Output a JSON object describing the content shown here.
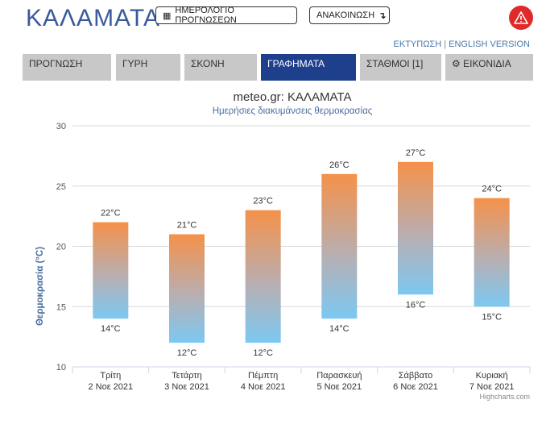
{
  "header": {
    "city": "ΚΑΛΑΜΑΤΑ",
    "calendar_button": "ΗΜΕΡΟΛΟΓΙΟ ΠΡΟΓΝΩΣΕΩΝ",
    "announcement_button": "ΑΝΑΚΟΙΝΩΣΗ",
    "print_link": "ΕΚΤΥΠΩΣΗ",
    "separator": "|",
    "english_link": "ENGLISH VERSION"
  },
  "tabs": [
    {
      "label": "ΠΡΟΓΝΩΣΗ",
      "active": false
    },
    {
      "label": "ΓΥΡΗ",
      "active": false
    },
    {
      "label": "ΣΚΟΝΗ",
      "active": false
    },
    {
      "label": "ΓΡΑΦΗΜΑΤΑ",
      "active": true
    },
    {
      "label": "ΣΤΑΘΜΟΙ [1]",
      "active": false
    },
    {
      "label": "ΕΙΚΟΝΙΔΙΑ",
      "active": false
    }
  ],
  "icons": {
    "calendar": "calendar-icon",
    "announcement": "arrow-turn-down-icon",
    "alert": "warning-icon",
    "icons_tab": "gear-icon"
  },
  "colors": {
    "accent": "#1e3f8c",
    "title": "#3a5a9a",
    "alert": "#e02a2a",
    "bar_top": "#f5914a",
    "bar_bottom": "#7cc8f2"
  },
  "chart_data": {
    "type": "bar",
    "title": "meteo.gr: ΚΑΛΑΜΑΤΑ",
    "subtitle": "Ημερήσιες διακυμάνσεις θερμοκρασίας",
    "ylabel": "Θερμοκρασία (°C)",
    "xlabel": "",
    "ylim": [
      10,
      30
    ],
    "yticks": [
      10,
      15,
      20,
      25,
      30
    ],
    "unit": "°C",
    "grid": true,
    "categories": [
      {
        "day": "Τρίτη",
        "date": "2 Νοε 2021"
      },
      {
        "day": "Τετάρτη",
        "date": "3 Νοε 2021"
      },
      {
        "day": "Πέμπτη",
        "date": "4 Νοε 2021"
      },
      {
        "day": "Παρασκευή",
        "date": "5 Νοε 2021"
      },
      {
        "day": "Σάββατο",
        "date": "6 Νοε 2021"
      },
      {
        "day": "Κυριακή",
        "date": "7 Νοε 2021"
      }
    ],
    "low": [
      14,
      12,
      12,
      14,
      16,
      15
    ],
    "high": [
      22,
      21,
      23,
      26,
      27,
      24
    ],
    "credits": "Highcharts.com"
  }
}
